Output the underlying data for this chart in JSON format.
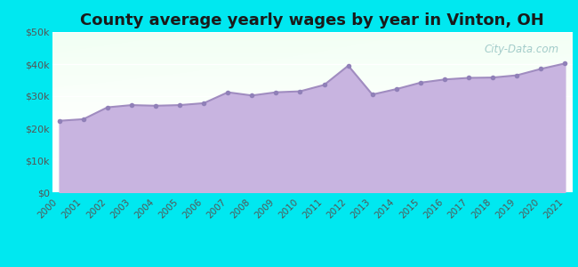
{
  "title": "County average yearly wages by year in Vinton, OH",
  "years": [
    2000,
    2001,
    2002,
    2003,
    2004,
    2005,
    2006,
    2007,
    2008,
    2009,
    2010,
    2011,
    2012,
    2013,
    2014,
    2015,
    2016,
    2017,
    2018,
    2019,
    2020,
    2021
  ],
  "wages": [
    22300,
    22800,
    26500,
    27200,
    27000,
    27200,
    27800,
    31200,
    30200,
    31200,
    31500,
    33500,
    39500,
    30500,
    32200,
    34200,
    35200,
    35700,
    35800,
    36500,
    38500,
    40200
  ],
  "line_color": "#a08cc0",
  "fill_color": "#c8b4e0",
  "marker_color": "#9080b8",
  "bg_outer": "#00e8f0",
  "ylim": [
    0,
    50000
  ],
  "yticks": [
    0,
    10000,
    20000,
    30000,
    40000,
    50000
  ],
  "ytick_labels": [
    "$0",
    "$10k",
    "$20k",
    "$30k",
    "$40k",
    "$50k"
  ],
  "watermark": "City-Data.com",
  "title_fontsize": 13,
  "tick_fontsize": 8
}
